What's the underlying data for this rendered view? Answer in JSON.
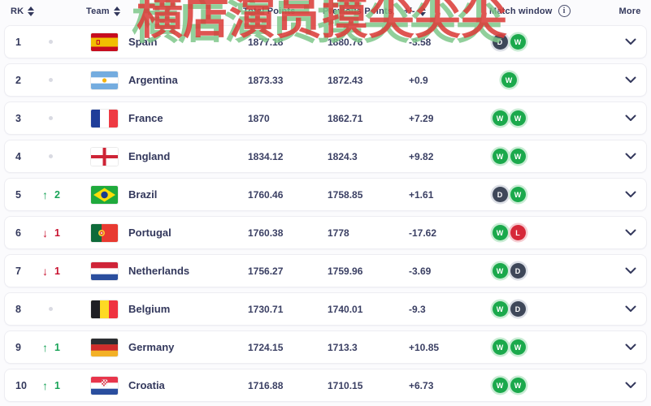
{
  "watermark": "横店演员摸尖尖尖",
  "header": {
    "rk": "RK",
    "team": "Team",
    "total_points": "Total Points",
    "previous_points": "Previous Points",
    "plus_minus": "+/-",
    "match_window": "Match window",
    "info_icon": "i",
    "more": "More"
  },
  "colors": {
    "text": "#33385c",
    "up_green": "#18a357",
    "down_red": "#c8102e",
    "win_badge": "#1ba94c",
    "draw_badge": "#3e4759",
    "loss_badge": "#d62839",
    "watermark_red": "#db3e3a",
    "watermark_green": "#7ec789"
  },
  "rows": [
    {
      "rank": "1",
      "change": "none",
      "change_value": "",
      "flag": "es",
      "team": "Spain",
      "total": "1877.18",
      "previous": "1880.76",
      "delta": "-3.58",
      "results": [
        "D",
        "W"
      ]
    },
    {
      "rank": "2",
      "change": "none",
      "change_value": "",
      "flag": "ar",
      "team": "Argentina",
      "total": "1873.33",
      "previous": "1872.43",
      "delta": "+0.9",
      "results": [
        "W"
      ]
    },
    {
      "rank": "3",
      "change": "none",
      "change_value": "",
      "flag": "fr",
      "team": "France",
      "total": "1870",
      "previous": "1862.71",
      "delta": "+7.29",
      "results": [
        "W",
        "W"
      ]
    },
    {
      "rank": "4",
      "change": "none",
      "change_value": "",
      "flag": "en",
      "team": "England",
      "total": "1834.12",
      "previous": "1824.3",
      "delta": "+9.82",
      "results": [
        "W",
        "W"
      ]
    },
    {
      "rank": "5",
      "change": "up",
      "change_value": "2",
      "flag": "br",
      "team": "Brazil",
      "total": "1760.46",
      "previous": "1758.85",
      "delta": "+1.61",
      "results": [
        "D",
        "W"
      ]
    },
    {
      "rank": "6",
      "change": "down",
      "change_value": "1",
      "flag": "pt",
      "team": "Portugal",
      "total": "1760.38",
      "previous": "1778",
      "delta": "-17.62",
      "results": [
        "W",
        "L"
      ]
    },
    {
      "rank": "7",
      "change": "down",
      "change_value": "1",
      "flag": "nl",
      "team": "Netherlands",
      "total": "1756.27",
      "previous": "1759.96",
      "delta": "-3.69",
      "results": [
        "W",
        "D"
      ]
    },
    {
      "rank": "8",
      "change": "none",
      "change_value": "",
      "flag": "be",
      "team": "Belgium",
      "total": "1730.71",
      "previous": "1740.01",
      "delta": "-9.3",
      "results": [
        "W",
        "D"
      ]
    },
    {
      "rank": "9",
      "change": "up",
      "change_value": "1",
      "flag": "de",
      "team": "Germany",
      "total": "1724.15",
      "previous": "1713.3",
      "delta": "+10.85",
      "results": [
        "W",
        "W"
      ]
    },
    {
      "rank": "10",
      "change": "up",
      "change_value": "1",
      "flag": "hr",
      "team": "Croatia",
      "total": "1716.88",
      "previous": "1710.15",
      "delta": "+6.73",
      "results": [
        "W",
        "W"
      ]
    }
  ]
}
